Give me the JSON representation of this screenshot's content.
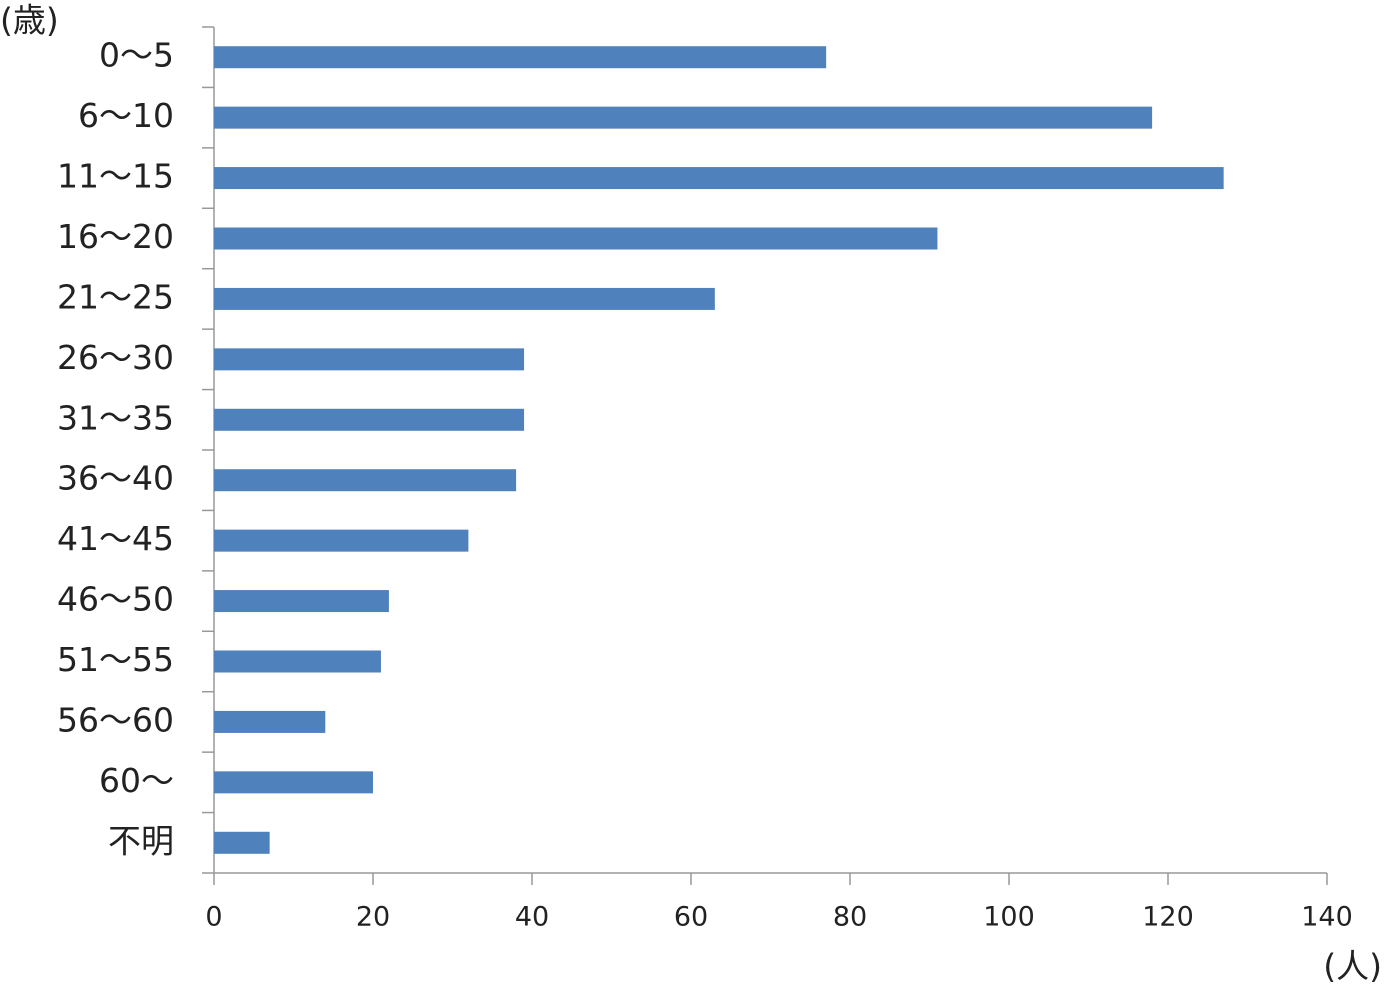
{
  "chart_data": {
    "type": "barh",
    "y_label": "(歳)",
    "x_label": "(人)",
    "categories": [
      "0～5",
      "6～10",
      "11～15",
      "16～20",
      "21～25",
      "26～30",
      "31～35",
      "36～40",
      "41～45",
      "46～50",
      "51～55",
      "56～60",
      "60～",
      "不明"
    ],
    "values": [
      77,
      118,
      127,
      91,
      63,
      39,
      39,
      38,
      32,
      22,
      21,
      14,
      20,
      7
    ],
    "color": "#4f81bd",
    "xlim": [
      0,
      140
    ],
    "xticks": [
      0,
      20,
      40,
      60,
      80,
      100,
      120,
      140
    ],
    "grid": false
  }
}
